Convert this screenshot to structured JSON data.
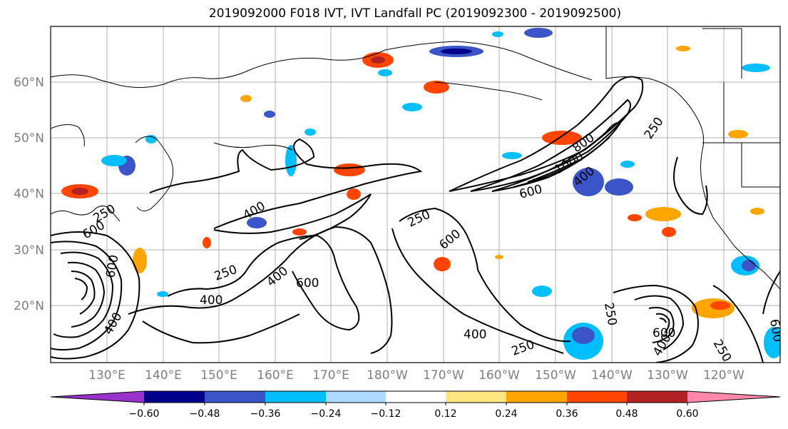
{
  "title": "2019092000 F018 IVT, IVT Landfall PC (2019092300 - 2019092500)",
  "lat_labels": [
    "60°N",
    "50°N",
    "40°N",
    "30°N",
    "20°N"
  ],
  "lon_labels": [
    "130°E",
    "140°E",
    "150°E",
    "160°E",
    "170°E",
    "180°W",
    "170°W",
    "160°W",
    "150°W",
    "140°W",
    "130°W",
    "120°W"
  ],
  "contour_labels": [
    "250",
    "400",
    "600",
    "800",
    "1000",
    "250",
    "400",
    "600",
    "250",
    "400",
    "600",
    "400",
    "600",
    "250",
    "400",
    "250",
    "400",
    "600",
    "250",
    "400",
    "600",
    "600",
    "250"
  ],
  "colorbar": {
    "colors": [
      "#9932cc",
      "#00008b",
      "#3b55c8",
      "#00bfff",
      "#add8ff",
      "#ffffff",
      "#ffe680",
      "#ffa500",
      "#ff4500",
      "#b22222",
      "#ff88aa"
    ],
    "ticks": [
      "−0.60",
      "−0.48",
      "−0.36",
      "−0.24",
      "−0.12",
      "0.12",
      "0.24",
      "0.36",
      "0.48",
      "0.60"
    ]
  }
}
